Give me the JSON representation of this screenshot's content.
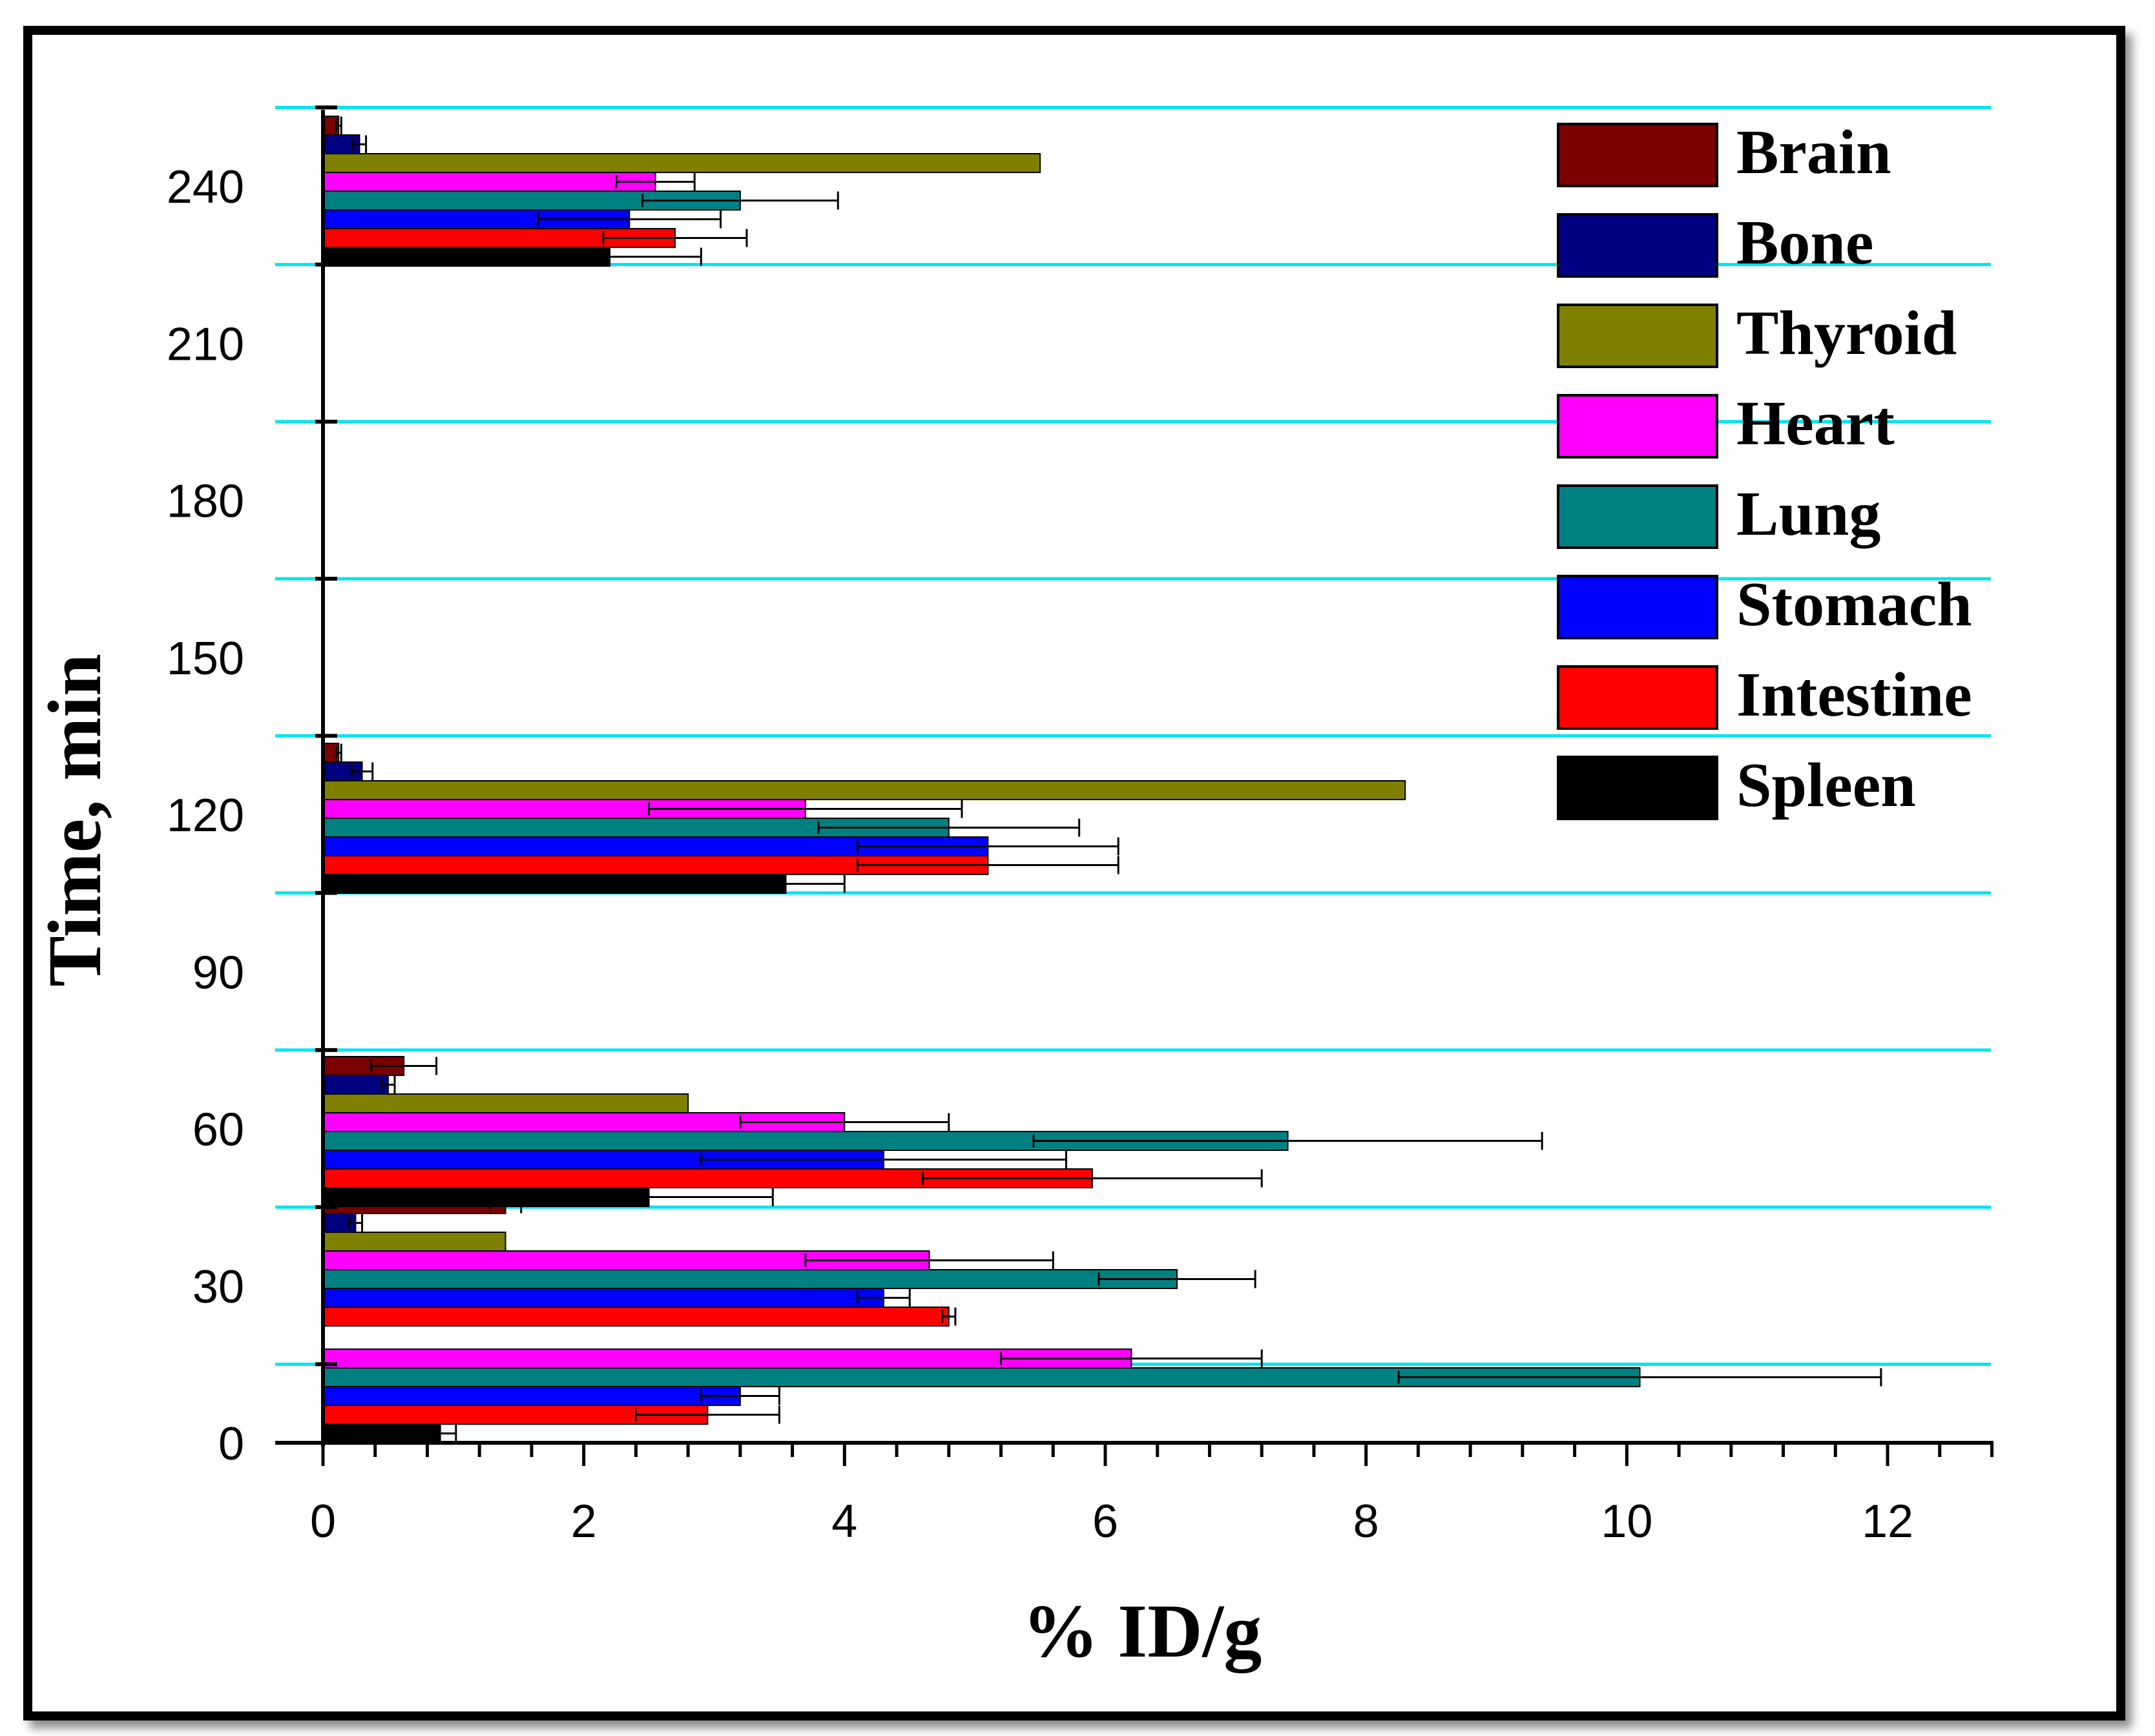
{
  "chart_data": {
    "type": "bar",
    "orientation": "horizontal",
    "title": "",
    "xlabel": "% ID/g",
    "ylabel": "Time, min",
    "xlim": [
      -0.7,
      12.8
    ],
    "xticks": [
      0,
      2,
      4,
      6,
      8,
      10,
      12
    ],
    "ylim": [
      0,
      255
    ],
    "yticks": [
      0,
      30,
      60,
      90,
      120,
      150,
      180,
      210,
      240
    ],
    "grid": "horizontal cyan lines at group boundaries",
    "legend_position": "top-right",
    "groups": [
      {
        "label": "0-15",
        "rows": [
          {
            "series": "Heart",
            "value": 6.2,
            "error": 1.0
          },
          {
            "series": "Lung",
            "value": 10.1,
            "error": 1.85
          },
          {
            "series": "Stomach",
            "value": 3.2,
            "error": 0.3
          },
          {
            "series": "Intestine",
            "value": 2.95,
            "error": 0.55
          },
          {
            "series": "Spleen",
            "value": 0.9,
            "error": 0.12
          }
        ]
      },
      {
        "label": "30",
        "rows": [
          {
            "series": "Brain",
            "value": 1.4,
            "error": 0.12
          },
          {
            "series": "Bone",
            "value": 0.25,
            "error": 0.05
          },
          {
            "series": "Thyroid",
            "value": 1.4,
            "error": 0
          },
          {
            "series": "Heart",
            "value": 4.65,
            "error": 0.95
          },
          {
            "series": "Lung",
            "value": 6.55,
            "error": 0.6
          },
          {
            "series": "Stomach",
            "value": 4.3,
            "error": 0.2
          },
          {
            "series": "Intestine",
            "value": 4.8,
            "error": 0.05
          }
        ]
      },
      {
        "label": "60",
        "rows": [
          {
            "series": "Brain",
            "value": 0.62,
            "error": 0.25
          },
          {
            "series": "Bone",
            "value": 0.5,
            "error": 0.05
          },
          {
            "series": "Thyroid",
            "value": 2.8,
            "error": 0
          },
          {
            "series": "Heart",
            "value": 4.0,
            "error": 0.8
          },
          {
            "series": "Lung",
            "value": 7.4,
            "error": 1.95
          },
          {
            "series": "Stomach",
            "value": 4.3,
            "error": 1.4
          },
          {
            "series": "Intestine",
            "value": 5.9,
            "error": 1.3
          },
          {
            "series": "Spleen",
            "value": 2.5,
            "error": 0.95
          }
        ]
      },
      {
        "label": "120",
        "rows": [
          {
            "series": "Brain",
            "value": 0.12,
            "error": 0.02
          },
          {
            "series": "Bone",
            "value": 0.3,
            "error": 0.08
          },
          {
            "series": "Thyroid",
            "value": 8.3,
            "error": 0
          },
          {
            "series": "Heart",
            "value": 3.7,
            "error": 1.2
          },
          {
            "series": "Lung",
            "value": 4.8,
            "error": 1.0
          },
          {
            "series": "Stomach",
            "value": 5.1,
            "error": 1.0
          },
          {
            "series": "Intestine",
            "value": 5.1,
            "error": 1.0
          },
          {
            "series": "Spleen",
            "value": 3.55,
            "error": 0.45
          }
        ]
      },
      {
        "label": "240",
        "rows": [
          {
            "series": "Brain",
            "value": 0.12,
            "error": 0.02
          },
          {
            "series": "Bone",
            "value": 0.28,
            "error": 0.05
          },
          {
            "series": "Thyroid",
            "value": 5.5,
            "error": 0
          },
          {
            "series": "Heart",
            "value": 2.55,
            "error": 0.3
          },
          {
            "series": "Lung",
            "value": 3.2,
            "error": 0.75
          },
          {
            "series": "Stomach",
            "value": 2.35,
            "error": 0.7
          },
          {
            "series": "Intestine",
            "value": 2.7,
            "error": 0.55
          },
          {
            "series": "Spleen",
            "value": 2.2,
            "error": 0.7
          }
        ]
      }
    ],
    "series": [
      {
        "name": "Brain",
        "color": "#7b0000"
      },
      {
        "name": "Bone",
        "color": "#000080"
      },
      {
        "name": "Thyroid",
        "color": "#808000"
      },
      {
        "name": "Heart",
        "color": "#ff00ff"
      },
      {
        "name": "Lung",
        "color": "#008080"
      },
      {
        "name": "Stomach",
        "color": "#0000ff"
      },
      {
        "name": "Intestine",
        "color": "#ff0000"
      },
      {
        "name": "Spleen",
        "color": "#000000"
      }
    ],
    "grid_color": "#00e5ee"
  }
}
